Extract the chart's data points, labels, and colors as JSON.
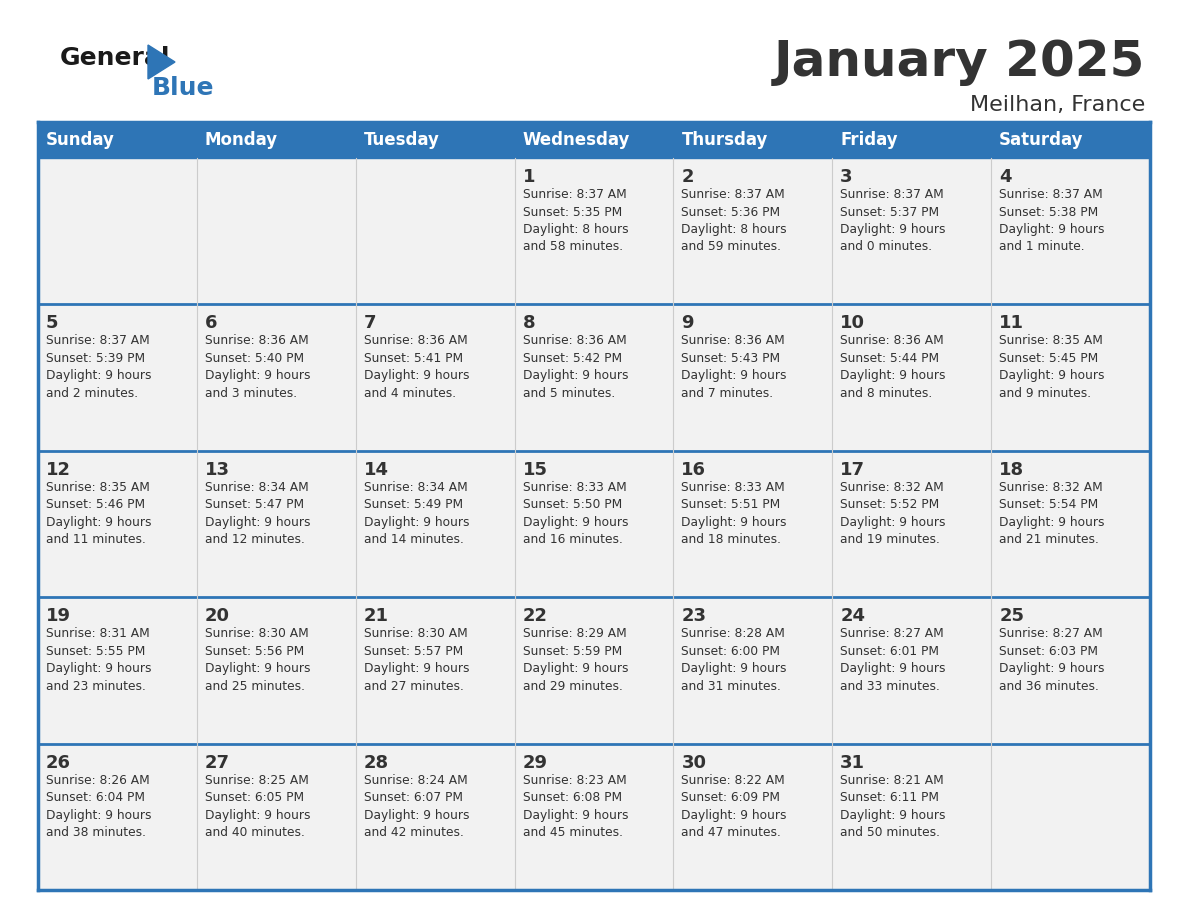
{
  "title": "January 2025",
  "subtitle": "Meilhan, France",
  "days_header": [
    "Sunday",
    "Monday",
    "Tuesday",
    "Wednesday",
    "Thursday",
    "Friday",
    "Saturday"
  ],
  "header_color": "#2e75b6",
  "header_text_color": "#ffffff",
  "cell_bg_color": "#f2f2f2",
  "border_color": "#2e75b6",
  "text_color": "#333333",
  "day_num_color": "#333333",
  "calendar": [
    [
      {
        "day": null,
        "info": null
      },
      {
        "day": null,
        "info": null
      },
      {
        "day": null,
        "info": null
      },
      {
        "day": 1,
        "info": "Sunrise: 8:37 AM\nSunset: 5:35 PM\nDaylight: 8 hours\nand 58 minutes."
      },
      {
        "day": 2,
        "info": "Sunrise: 8:37 AM\nSunset: 5:36 PM\nDaylight: 8 hours\nand 59 minutes."
      },
      {
        "day": 3,
        "info": "Sunrise: 8:37 AM\nSunset: 5:37 PM\nDaylight: 9 hours\nand 0 minutes."
      },
      {
        "day": 4,
        "info": "Sunrise: 8:37 AM\nSunset: 5:38 PM\nDaylight: 9 hours\nand 1 minute."
      }
    ],
    [
      {
        "day": 5,
        "info": "Sunrise: 8:37 AM\nSunset: 5:39 PM\nDaylight: 9 hours\nand 2 minutes."
      },
      {
        "day": 6,
        "info": "Sunrise: 8:36 AM\nSunset: 5:40 PM\nDaylight: 9 hours\nand 3 minutes."
      },
      {
        "day": 7,
        "info": "Sunrise: 8:36 AM\nSunset: 5:41 PM\nDaylight: 9 hours\nand 4 minutes."
      },
      {
        "day": 8,
        "info": "Sunrise: 8:36 AM\nSunset: 5:42 PM\nDaylight: 9 hours\nand 5 minutes."
      },
      {
        "day": 9,
        "info": "Sunrise: 8:36 AM\nSunset: 5:43 PM\nDaylight: 9 hours\nand 7 minutes."
      },
      {
        "day": 10,
        "info": "Sunrise: 8:36 AM\nSunset: 5:44 PM\nDaylight: 9 hours\nand 8 minutes."
      },
      {
        "day": 11,
        "info": "Sunrise: 8:35 AM\nSunset: 5:45 PM\nDaylight: 9 hours\nand 9 minutes."
      }
    ],
    [
      {
        "day": 12,
        "info": "Sunrise: 8:35 AM\nSunset: 5:46 PM\nDaylight: 9 hours\nand 11 minutes."
      },
      {
        "day": 13,
        "info": "Sunrise: 8:34 AM\nSunset: 5:47 PM\nDaylight: 9 hours\nand 12 minutes."
      },
      {
        "day": 14,
        "info": "Sunrise: 8:34 AM\nSunset: 5:49 PM\nDaylight: 9 hours\nand 14 minutes."
      },
      {
        "day": 15,
        "info": "Sunrise: 8:33 AM\nSunset: 5:50 PM\nDaylight: 9 hours\nand 16 minutes."
      },
      {
        "day": 16,
        "info": "Sunrise: 8:33 AM\nSunset: 5:51 PM\nDaylight: 9 hours\nand 18 minutes."
      },
      {
        "day": 17,
        "info": "Sunrise: 8:32 AM\nSunset: 5:52 PM\nDaylight: 9 hours\nand 19 minutes."
      },
      {
        "day": 18,
        "info": "Sunrise: 8:32 AM\nSunset: 5:54 PM\nDaylight: 9 hours\nand 21 minutes."
      }
    ],
    [
      {
        "day": 19,
        "info": "Sunrise: 8:31 AM\nSunset: 5:55 PM\nDaylight: 9 hours\nand 23 minutes."
      },
      {
        "day": 20,
        "info": "Sunrise: 8:30 AM\nSunset: 5:56 PM\nDaylight: 9 hours\nand 25 minutes."
      },
      {
        "day": 21,
        "info": "Sunrise: 8:30 AM\nSunset: 5:57 PM\nDaylight: 9 hours\nand 27 minutes."
      },
      {
        "day": 22,
        "info": "Sunrise: 8:29 AM\nSunset: 5:59 PM\nDaylight: 9 hours\nand 29 minutes."
      },
      {
        "day": 23,
        "info": "Sunrise: 8:28 AM\nSunset: 6:00 PM\nDaylight: 9 hours\nand 31 minutes."
      },
      {
        "day": 24,
        "info": "Sunrise: 8:27 AM\nSunset: 6:01 PM\nDaylight: 9 hours\nand 33 minutes."
      },
      {
        "day": 25,
        "info": "Sunrise: 8:27 AM\nSunset: 6:03 PM\nDaylight: 9 hours\nand 36 minutes."
      }
    ],
    [
      {
        "day": 26,
        "info": "Sunrise: 8:26 AM\nSunset: 6:04 PM\nDaylight: 9 hours\nand 38 minutes."
      },
      {
        "day": 27,
        "info": "Sunrise: 8:25 AM\nSunset: 6:05 PM\nDaylight: 9 hours\nand 40 minutes."
      },
      {
        "day": 28,
        "info": "Sunrise: 8:24 AM\nSunset: 6:07 PM\nDaylight: 9 hours\nand 42 minutes."
      },
      {
        "day": 29,
        "info": "Sunrise: 8:23 AM\nSunset: 6:08 PM\nDaylight: 9 hours\nand 45 minutes."
      },
      {
        "day": 30,
        "info": "Sunrise: 8:22 AM\nSunset: 6:09 PM\nDaylight: 9 hours\nand 47 minutes."
      },
      {
        "day": 31,
        "info": "Sunrise: 8:21 AM\nSunset: 6:11 PM\nDaylight: 9 hours\nand 50 minutes."
      },
      {
        "day": null,
        "info": null
      }
    ]
  ],
  "logo_general_color": "#1a1a1a",
  "logo_blue_color": "#2e75b6",
  "logo_triangle_color": "#2e75b6"
}
